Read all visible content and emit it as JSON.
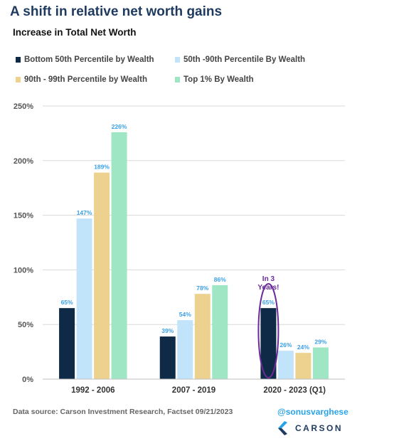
{
  "header": {
    "title": "A shift in relative net worth gains",
    "subtitle": "Increase in Total Net Worth"
  },
  "chart_data": {
    "type": "bar",
    "categories": [
      "1992 - 2006",
      "2007 - 2019",
      "2020 - 2023 (Q1)"
    ],
    "series": [
      {
        "name": "Bottom 50th Percentile by Wealth",
        "color": "#0e2a46",
        "values": [
          65,
          39,
          65
        ]
      },
      {
        "name": "50th -90th Percentile By Wealth",
        "color": "#c2e4fb",
        "values": [
          147,
          54,
          26
        ]
      },
      {
        "name": "90th - 99th Percentile by Wealth",
        "color": "#ecd28e",
        "values": [
          189,
          78,
          24
        ]
      },
      {
        "name": "Top 1% By Wealth",
        "color": "#9fe6c4",
        "values": [
          226,
          86,
          29
        ]
      }
    ],
    "value_label_suffix": "%",
    "value_label_color": "#3aa0e8",
    "y_ticks": [
      0,
      50,
      100,
      150,
      200,
      250
    ],
    "y_tick_labels": [
      "0%",
      "50%",
      "100%",
      "150%",
      "200%",
      "250%"
    ],
    "ylim": [
      0,
      250
    ],
    "grid": true,
    "legend_position": "top",
    "annotation": {
      "text_lines": [
        "In 3",
        "Years!"
      ],
      "color": "#6a2a9a",
      "category": "2020 - 2023 (Q1)",
      "series": "Bottom 50th Percentile by Wealth"
    }
  },
  "footer": {
    "source": "Data source: Carson Investment Research, Factset   09/21/2023",
    "handle": "@sonusvarghese",
    "logo_text": "CARSON"
  },
  "colors": {
    "title": "#1f3a5f",
    "handle": "#2aa3e6",
    "logo_dark": "#1f3a5f",
    "logo_light": "#2aa3e6"
  }
}
